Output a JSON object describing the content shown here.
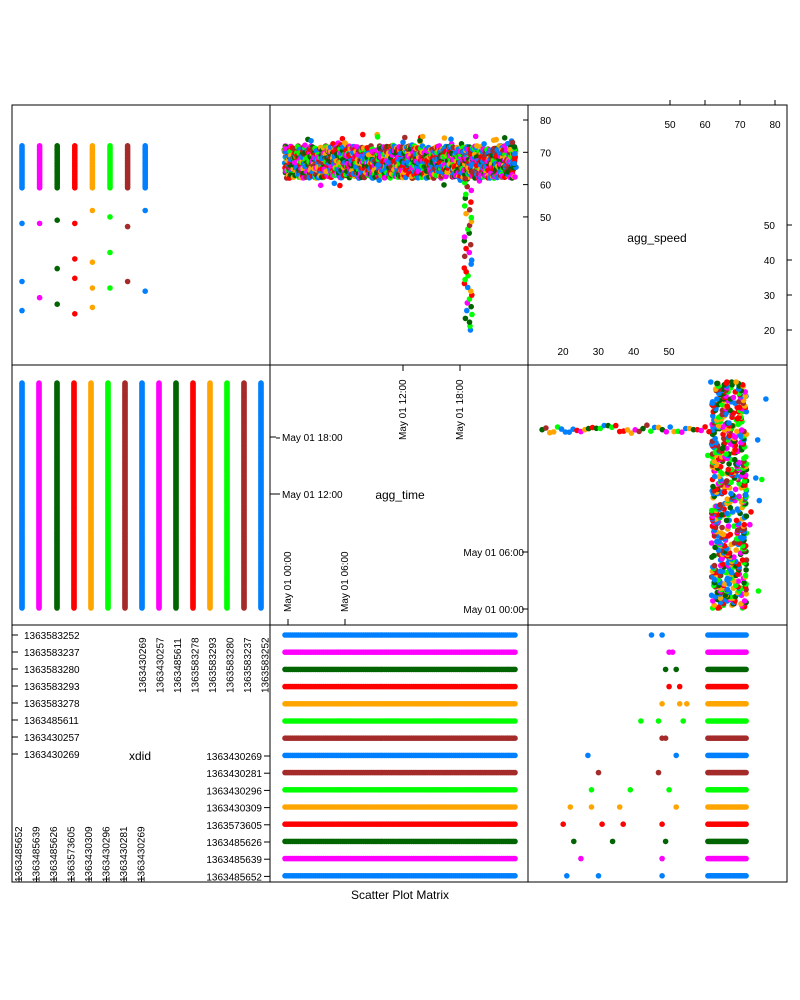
{
  "title": "Scatter Plot Matrix",
  "colors": [
    "#0080ff",
    "#ff00ff",
    "#006400",
    "#ff0000",
    "#ffa500",
    "#00ff00",
    "#a52a2a"
  ],
  "chart_data": {
    "type": "scatter",
    "variables": [
      "xdid",
      "agg_time",
      "agg_speed"
    ],
    "series": [
      {
        "xdid": "1363430269",
        "color": "#0080ff"
      },
      {
        "xdid": "1363430257",
        "color": "#ff00ff"
      },
      {
        "xdid": "1363485611",
        "color": "#006400"
      },
      {
        "xdid": "1363583278",
        "color": "#ff0000"
      },
      {
        "xdid": "1363583293",
        "color": "#ffa500"
      },
      {
        "xdid": "1363583280",
        "color": "#00ff00"
      },
      {
        "xdid": "1363583237",
        "color": "#a52a2a"
      },
      {
        "xdid": "1363583252",
        "color": "#0080ff"
      },
      {
        "xdid": "1363430281",
        "color": "#a52a2a"
      },
      {
        "xdid": "1363430296",
        "color": "#00ff00"
      },
      {
        "xdid": "1363430309",
        "color": "#ffa500"
      },
      {
        "xdid": "1363573605",
        "color": "#ff0000"
      },
      {
        "xdid": "1363485626",
        "color": "#006400"
      },
      {
        "xdid": "1363485639",
        "color": "#ff00ff"
      },
      {
        "xdid": "1363485652",
        "color": "#0080ff"
      }
    ],
    "top_panel_columns": [
      "1363430269",
      "1363430257",
      "1363485611",
      "1363583278",
      "1363583293",
      "1363583280",
      "1363583237",
      "1363583252"
    ],
    "xdid_diag": {
      "upper_left_ticks": [
        "1363583252",
        "1363583237",
        "1363583280",
        "1363583293",
        "1363583278",
        "1363485611",
        "1363430257",
        "1363430269"
      ],
      "upper_right_ticks": [
        "1363430269",
        "1363430257",
        "1363485611",
        "1363583278",
        "1363583293",
        "1363583280",
        "1363583237",
        "1363583252"
      ],
      "lower_left_ticks": [
        "1363485652",
        "1363485639",
        "1363485626",
        "1363573605",
        "1363430309",
        "1363430296",
        "1363430281",
        "1363430269"
      ],
      "lower_right_ticks": [
        "1363430269",
        "1363430281",
        "1363430296",
        "1363430309",
        "1363573605",
        "1363485626",
        "1363485639",
        "1363485652"
      ]
    },
    "agg_time_diag": {
      "bottom_ticks": [
        "May 01 00:00",
        "May 01 06:00"
      ],
      "top_ticks": [
        "May 01 12:00",
        "May 01 18:00"
      ],
      "left_ticks": [
        "May 01 12:00",
        "May 01 18:00"
      ],
      "right_ticks": [
        "May 01 00:00",
        "May 01 06:00"
      ]
    },
    "agg_speed_diag": {
      "top_ticks": [
        50,
        60,
        70,
        80
      ],
      "right_ticks": [
        50,
        60,
        70,
        80
      ],
      "left_ticks": [
        20,
        30,
        40,
        50
      ],
      "bottom_ticks": [
        20,
        30,
        40,
        50
      ],
      "range": [
        12,
        82
      ]
    },
    "agg_speed_typical_range": [
      62,
      72
    ],
    "agg_speed_outliers": [
      {
        "xdid": "1363430269",
        "speeds": [
          48,
          30,
          21
        ]
      },
      {
        "xdid": "1363430257",
        "speeds": [
          48,
          25
        ]
      },
      {
        "xdid": "1363485611",
        "speeds": [
          49,
          34,
          23
        ]
      },
      {
        "xdid": "1363583278",
        "speeds": [
          48,
          37,
          31,
          20
        ]
      },
      {
        "xdid": "1363583293",
        "speeds": [
          52,
          36,
          28,
          22
        ]
      },
      {
        "xdid": "1363583280",
        "speeds": [
          50,
          39,
          28
        ]
      },
      {
        "xdid": "1363583237",
        "speeds": [
          47,
          30
        ]
      },
      {
        "xdid": "1363583252",
        "speeds": [
          52,
          27
        ]
      },
      {
        "xdid": "1363430281",
        "speeds": [
          49,
          48
        ]
      },
      {
        "xdid": "1363430296",
        "speeds": [
          54,
          47,
          42
        ]
      },
      {
        "xdid": "1363430309",
        "speeds": [
          55,
          53,
          48
        ]
      },
      {
        "xdid": "1363573605",
        "speeds": [
          53,
          50
        ]
      },
      {
        "xdid": "1363485626",
        "speeds": [
          52,
          49
        ]
      },
      {
        "xdid": "1363485639",
        "speeds": [
          50,
          51
        ]
      },
      {
        "xdid": "1363485652",
        "speeds": [
          45,
          48
        ]
      }
    ],
    "speed_drop_time": "May 01 19:00",
    "time_range": [
      "May 01 00:00",
      "May 01 23:59"
    ]
  }
}
